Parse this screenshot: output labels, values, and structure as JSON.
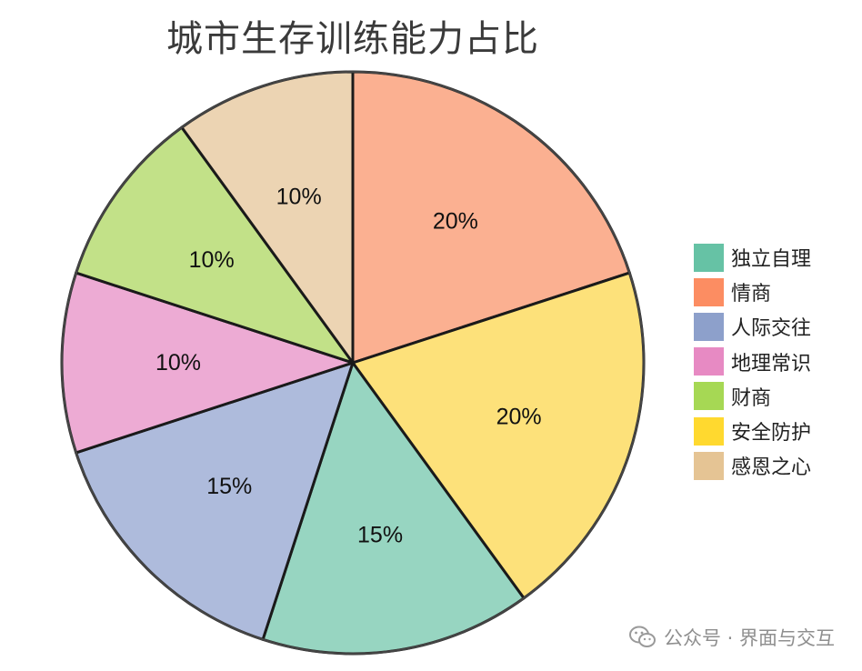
{
  "chart_data": {
    "type": "pie",
    "title": "城市生存训练能力占比",
    "start_angle": "top",
    "direction": "clockwise",
    "slices": [
      {
        "label": "情商",
        "value": 20,
        "label_text": "20%",
        "color": "#fbb091",
        "legend_color": "#fc8d62"
      },
      {
        "label": "安全防护",
        "value": 20,
        "label_text": "20%",
        "color": "#fde17a",
        "legend_color": "#ffd92f"
      },
      {
        "label": "独立自理",
        "value": 15,
        "label_text": "15%",
        "color": "#97d5c1",
        "legend_color": "#66c2a5"
      },
      {
        "label": "人际交往",
        "value": 15,
        "label_text": "15%",
        "color": "#aebbdc",
        "legend_color": "#8da0cb"
      },
      {
        "label": "地理常识",
        "value": 10,
        "label_text": "10%",
        "color": "#edabd4",
        "legend_color": "#e78ac3"
      },
      {
        "label": "财商",
        "value": 10,
        "label_text": "10%",
        "color": "#c2e188",
        "legend_color": "#a6d854"
      },
      {
        "label": "感恩之心",
        "value": 10,
        "label_text": "10%",
        "color": "#ecd4b3",
        "legend_color": "#e5c494"
      }
    ],
    "legend": {
      "position": "right",
      "order": [
        "独立自理",
        "情商",
        "人际交往",
        "地理常识",
        "财商",
        "安全防护",
        "感恩之心"
      ]
    }
  },
  "watermark": {
    "text": "公众号 · 界面与交互",
    "icon": "wechat-icon"
  }
}
